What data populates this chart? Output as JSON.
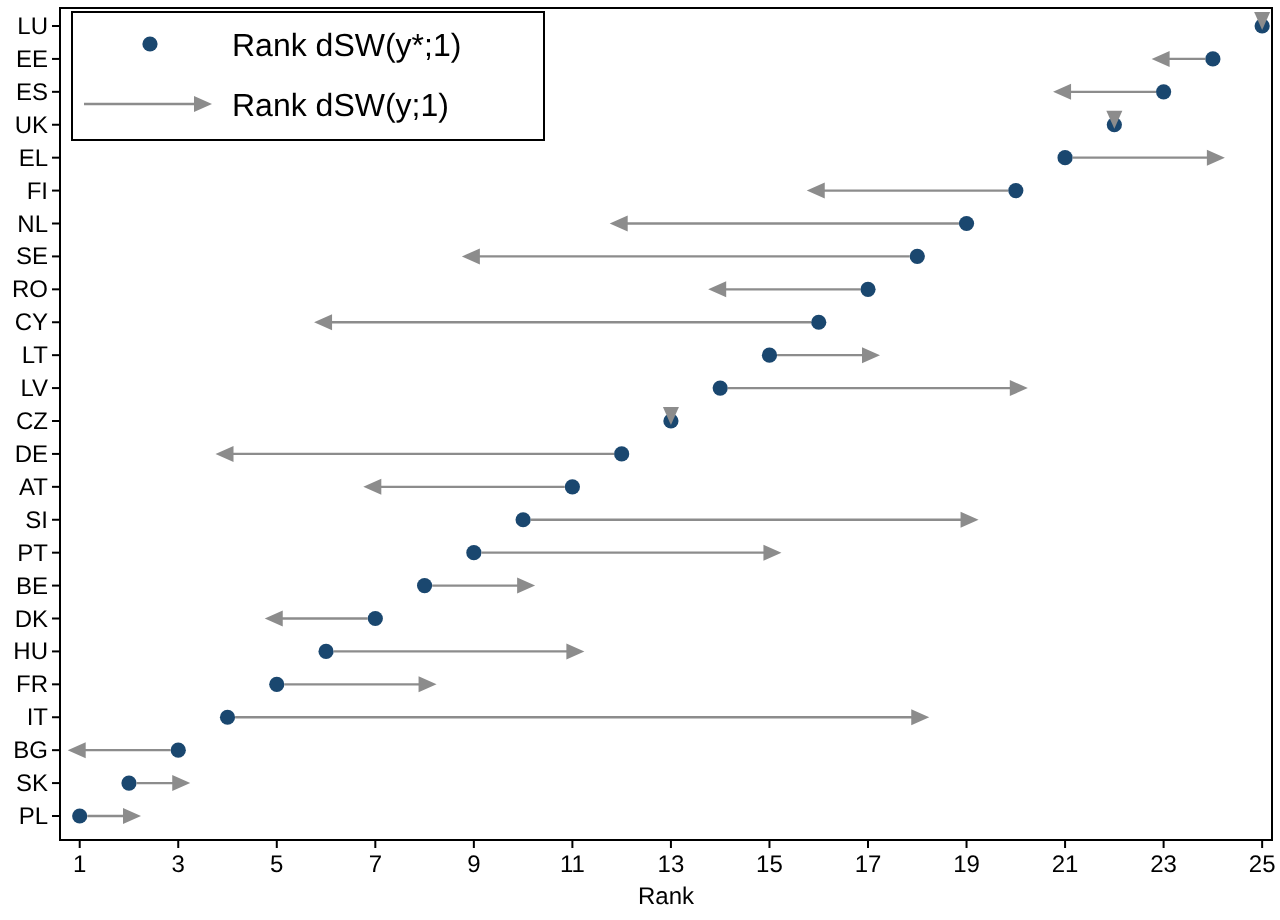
{
  "chart_data": {
    "type": "scatter",
    "orientation": "horizontal",
    "xlabel": "Rank",
    "categories": [
      "LU",
      "EE",
      "ES",
      "UK",
      "EL",
      "FI",
      "NL",
      "SE",
      "RO",
      "CY",
      "LT",
      "LV",
      "CZ",
      "DE",
      "AT",
      "SI",
      "PT",
      "BE",
      "DK",
      "HU",
      "FR",
      "IT",
      "BG",
      "SK",
      "PL"
    ],
    "series": [
      {
        "name": "Rank dSW(y*;1)",
        "color": "#1a476f",
        "marker": "circle",
        "values": [
          25,
          24,
          23,
          22,
          21,
          20,
          19,
          18,
          17,
          16,
          15,
          14,
          13,
          12,
          11,
          10,
          9,
          8,
          7,
          6,
          5,
          4,
          3,
          2,
          1
        ]
      },
      {
        "name": "Rank dSW(y;1)",
        "marker": "triangle",
        "color": "#8c8c8c",
        "values": [
          25,
          23,
          21,
          22,
          24,
          16,
          12,
          9,
          14,
          6,
          17,
          20,
          13,
          4,
          7,
          19,
          15,
          10,
          5,
          11,
          8,
          18,
          1,
          3,
          2
        ]
      }
    ],
    "xlim": [
      0.6,
      25.2
    ],
    "xticks": [
      1,
      3,
      5,
      7,
      9,
      11,
      13,
      15,
      17,
      19,
      21,
      23,
      25
    ],
    "grid": false,
    "legend": "top left"
  }
}
